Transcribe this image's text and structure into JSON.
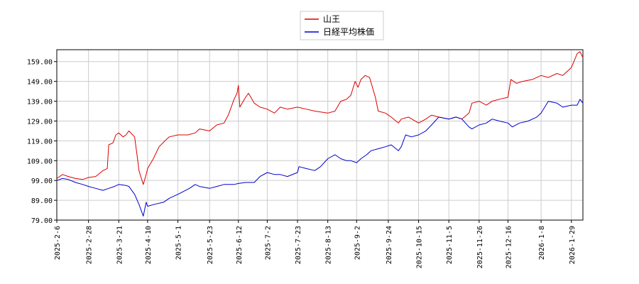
{
  "chart_data": {
    "type": "line",
    "title": "",
    "xlabel": "",
    "ylabel": "",
    "ylim": [
      79,
      165
    ],
    "xlim": [
      "2025-02-06",
      "2026-02-06"
    ],
    "yticks": [
      "79.00",
      "89.00",
      "99.00",
      "109.00",
      "119.00",
      "129.00",
      "139.00",
      "149.00",
      "159.00"
    ],
    "xticks": [
      "2025-2-6",
      "2025-2-28",
      "2025-3-21",
      "2025-4-10",
      "2025-5-1",
      "2025-5-23",
      "2025-6-12",
      "2025-7-2",
      "2025-7-23",
      "2025-8-13",
      "2025-9-2",
      "2025-9-24",
      "2025-10-15",
      "2025-11-5",
      "2025-11-26",
      "2025-12-16",
      "2026-1-8",
      "2026-1-29"
    ],
    "grid": true,
    "legend_position": "top-center",
    "series": [
      {
        "name": "山王",
        "color": "#dd0000",
        "points": [
          [
            "2025-02-06",
            100
          ],
          [
            "2025-02-10",
            102
          ],
          [
            "2025-02-14",
            101
          ],
          [
            "2025-02-19",
            100
          ],
          [
            "2025-02-24",
            99.5
          ],
          [
            "2025-02-28",
            100.5
          ],
          [
            "2025-03-05",
            101
          ],
          [
            "2025-03-10",
            104
          ],
          [
            "2025-03-13",
            105
          ],
          [
            "2025-03-14",
            117
          ],
          [
            "2025-03-17",
            118
          ],
          [
            "2025-03-19",
            122
          ],
          [
            "2025-03-21",
            123
          ],
          [
            "2025-03-24",
            121
          ],
          [
            "2025-03-26",
            122
          ],
          [
            "2025-03-28",
            124
          ],
          [
            "2025-04-01",
            121
          ],
          [
            "2025-04-03",
            110
          ],
          [
            "2025-04-04",
            104
          ],
          [
            "2025-04-07",
            97
          ],
          [
            "2025-04-09",
            102
          ],
          [
            "2025-04-10",
            105
          ],
          [
            "2025-04-14",
            110
          ],
          [
            "2025-04-18",
            116
          ],
          [
            "2025-04-22",
            119
          ],
          [
            "2025-04-25",
            121
          ],
          [
            "2025-05-01",
            122
          ],
          [
            "2025-05-08",
            122
          ],
          [
            "2025-05-13",
            123
          ],
          [
            "2025-05-16",
            125
          ],
          [
            "2025-05-23",
            124
          ],
          [
            "2025-05-28",
            127
          ],
          [
            "2025-06-02",
            128
          ],
          [
            "2025-06-05",
            132
          ],
          [
            "2025-06-09",
            140
          ],
          [
            "2025-06-11",
            143
          ],
          [
            "2025-06-12",
            147
          ],
          [
            "2025-06-13",
            136
          ],
          [
            "2025-06-17",
            141
          ],
          [
            "2025-06-19",
            143
          ],
          [
            "2025-06-23",
            138
          ],
          [
            "2025-06-27",
            136
          ],
          [
            "2025-07-02",
            135
          ],
          [
            "2025-07-07",
            133
          ],
          [
            "2025-07-11",
            136
          ],
          [
            "2025-07-16",
            135
          ],
          [
            "2025-07-23",
            136
          ],
          [
            "2025-07-29",
            135
          ],
          [
            "2025-08-04",
            134
          ],
          [
            "2025-08-13",
            133
          ],
          [
            "2025-08-18",
            134
          ],
          [
            "2025-08-22",
            139
          ],
          [
            "2025-08-26",
            140
          ],
          [
            "2025-08-29",
            142
          ],
          [
            "2025-09-01",
            149
          ],
          [
            "2025-09-03",
            146
          ],
          [
            "2025-09-05",
            150
          ],
          [
            "2025-09-08",
            152
          ],
          [
            "2025-09-11",
            151
          ],
          [
            "2025-09-15",
            141
          ],
          [
            "2025-09-17",
            134
          ],
          [
            "2025-09-22",
            133
          ],
          [
            "2025-09-26",
            131
          ],
          [
            "2025-10-01",
            128
          ],
          [
            "2025-10-03",
            130
          ],
          [
            "2025-10-08",
            131
          ],
          [
            "2025-10-15",
            128
          ],
          [
            "2025-10-20",
            130
          ],
          [
            "2025-10-24",
            132
          ],
          [
            "2025-10-29",
            131
          ],
          [
            "2025-11-05",
            130
          ],
          [
            "2025-11-10",
            131
          ],
          [
            "2025-11-14",
            130
          ],
          [
            "2025-11-19",
            133
          ],
          [
            "2025-11-21",
            138
          ],
          [
            "2025-11-26",
            139
          ],
          [
            "2025-12-01",
            137
          ],
          [
            "2025-12-05",
            139
          ],
          [
            "2025-12-10",
            140
          ],
          [
            "2025-12-16",
            141
          ],
          [
            "2025-12-18",
            150
          ],
          [
            "2025-12-22",
            148
          ],
          [
            "2025-12-26",
            149
          ],
          [
            "2026-01-02",
            150
          ],
          [
            "2026-01-08",
            152
          ],
          [
            "2026-01-13",
            151
          ],
          [
            "2026-01-19",
            153
          ],
          [
            "2026-01-23",
            152
          ],
          [
            "2026-01-29",
            156
          ],
          [
            "2026-02-02",
            163
          ],
          [
            "2026-02-04",
            164
          ],
          [
            "2026-02-06",
            161
          ]
        ]
      },
      {
        "name": "日経平均株価",
        "color": "#0000cc",
        "points": [
          [
            "2025-02-06",
            99
          ],
          [
            "2025-02-10",
            100
          ],
          [
            "2025-02-14",
            99.5
          ],
          [
            "2025-02-19",
            98
          ],
          [
            "2025-02-24",
            97
          ],
          [
            "2025-02-28",
            96
          ],
          [
            "2025-03-05",
            95
          ],
          [
            "2025-03-10",
            94
          ],
          [
            "2025-03-14",
            95
          ],
          [
            "2025-03-18",
            96
          ],
          [
            "2025-03-21",
            97
          ],
          [
            "2025-03-26",
            96.5
          ],
          [
            "2025-03-28",
            96
          ],
          [
            "2025-04-01",
            92
          ],
          [
            "2025-04-04",
            87
          ],
          [
            "2025-04-07",
            81
          ],
          [
            "2025-04-09",
            88
          ],
          [
            "2025-04-10",
            86
          ],
          [
            "2025-04-15",
            87
          ],
          [
            "2025-04-21",
            88
          ],
          [
            "2025-04-25",
            90
          ],
          [
            "2025-05-01",
            92
          ],
          [
            "2025-05-09",
            95
          ],
          [
            "2025-05-13",
            97
          ],
          [
            "2025-05-16",
            96
          ],
          [
            "2025-05-23",
            95
          ],
          [
            "2025-05-28",
            96
          ],
          [
            "2025-06-02",
            97
          ],
          [
            "2025-06-09",
            97
          ],
          [
            "2025-06-12",
            97.5
          ],
          [
            "2025-06-17",
            98
          ],
          [
            "2025-06-23",
            98
          ],
          [
            "2025-06-27",
            101
          ],
          [
            "2025-07-02",
            103
          ],
          [
            "2025-07-07",
            102
          ],
          [
            "2025-07-11",
            102
          ],
          [
            "2025-07-16",
            101
          ],
          [
            "2025-07-23",
            103
          ],
          [
            "2025-07-24",
            106
          ],
          [
            "2025-07-29",
            105
          ],
          [
            "2025-08-04",
            104
          ],
          [
            "2025-08-08",
            106
          ],
          [
            "2025-08-13",
            110
          ],
          [
            "2025-08-18",
            112
          ],
          [
            "2025-08-22",
            110
          ],
          [
            "2025-08-26",
            109
          ],
          [
            "2025-08-29",
            109
          ],
          [
            "2025-09-02",
            108
          ],
          [
            "2025-09-05",
            110
          ],
          [
            "2025-09-09",
            112
          ],
          [
            "2025-09-12",
            114
          ],
          [
            "2025-09-17",
            115
          ],
          [
            "2025-09-22",
            116
          ],
          [
            "2025-09-26",
            117
          ],
          [
            "2025-10-01",
            114
          ],
          [
            "2025-10-03",
            116
          ],
          [
            "2025-10-06",
            122
          ],
          [
            "2025-10-10",
            121
          ],
          [
            "2025-10-15",
            122
          ],
          [
            "2025-10-20",
            124
          ],
          [
            "2025-10-24",
            127
          ],
          [
            "2025-10-29",
            131
          ],
          [
            "2025-11-05",
            130
          ],
          [
            "2025-11-10",
            131
          ],
          [
            "2025-11-14",
            130
          ],
          [
            "2025-11-19",
            126
          ],
          [
            "2025-11-21",
            125
          ],
          [
            "2025-11-26",
            127
          ],
          [
            "2025-12-01",
            128
          ],
          [
            "2025-12-05",
            130
          ],
          [
            "2025-12-10",
            129
          ],
          [
            "2025-12-16",
            128
          ],
          [
            "2025-12-19",
            126
          ],
          [
            "2025-12-24",
            128
          ],
          [
            "2025-12-30",
            129
          ],
          [
            "2026-01-05",
            131
          ],
          [
            "2026-01-08",
            133
          ],
          [
            "2026-01-13",
            139
          ],
          [
            "2026-01-19",
            138
          ],
          [
            "2026-01-23",
            136
          ],
          [
            "2026-01-29",
            137
          ],
          [
            "2026-02-02",
            137
          ],
          [
            "2026-02-04",
            140
          ],
          [
            "2026-02-06",
            138
          ]
        ]
      }
    ]
  }
}
